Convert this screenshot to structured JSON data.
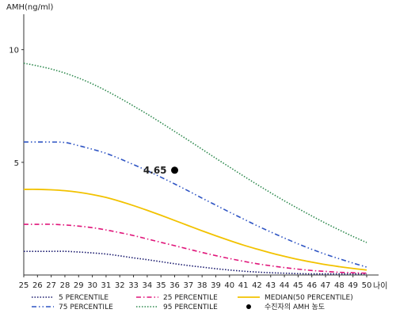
{
  "chart_data": {
    "type": "line",
    "ylabel": "AMH(ng/ml)",
    "xlabel": "나이",
    "xlim": [
      25,
      50
    ],
    "ylim": [
      0,
      11.5
    ],
    "yticks": [
      5,
      10
    ],
    "x": [
      25,
      26,
      27,
      28,
      29,
      30,
      31,
      32,
      33,
      34,
      35,
      36,
      37,
      38,
      39,
      40,
      41,
      42,
      43,
      44,
      45,
      46,
      47,
      48,
      49,
      50
    ],
    "series": [
      {
        "name": "5 PERCENTILE",
        "color": "#1a1a6e",
        "dash": "dotted",
        "values": [
          1.05,
          1.05,
          1.05,
          1.05,
          1.02,
          0.98,
          0.93,
          0.85,
          0.76,
          0.68,
          0.59,
          0.5,
          0.42,
          0.35,
          0.28,
          0.22,
          0.17,
          0.13,
          0.1,
          0.08,
          0.06,
          0.05,
          0.05,
          0.05,
          0.05,
          0.05
        ]
      },
      {
        "name": "25 PERCENTILE",
        "color": "#e0157a",
        "dash": "dash-dot",
        "values": [
          2.25,
          2.25,
          2.25,
          2.22,
          2.17,
          2.1,
          2.0,
          1.88,
          1.75,
          1.6,
          1.45,
          1.3,
          1.15,
          1.0,
          0.86,
          0.73,
          0.61,
          0.5,
          0.41,
          0.33,
          0.26,
          0.2,
          0.16,
          0.12,
          0.1,
          0.08
        ]
      },
      {
        "name": "MEDIAN(50 PERCENTILE)",
        "color": "#f2c200",
        "dash": "solid",
        "values": [
          3.8,
          3.8,
          3.78,
          3.74,
          3.67,
          3.57,
          3.44,
          3.27,
          3.08,
          2.87,
          2.65,
          2.42,
          2.19,
          1.96,
          1.74,
          1.53,
          1.33,
          1.15,
          0.98,
          0.83,
          0.69,
          0.57,
          0.46,
          0.37,
          0.29,
          0.22
        ]
      },
      {
        "name": "75 PERCENTILE",
        "color": "#2f55c4",
        "dash": "dash-dot-dot",
        "values": [
          5.9,
          5.9,
          5.9,
          5.88,
          5.74,
          5.58,
          5.4,
          5.16,
          4.9,
          4.63,
          4.34,
          4.04,
          3.73,
          3.41,
          3.1,
          2.79,
          2.49,
          2.19,
          1.91,
          1.64,
          1.38,
          1.14,
          0.92,
          0.72,
          0.53,
          0.35
        ]
      },
      {
        "name": "95 PERCENTILE",
        "color": "#2f8a4f",
        "dash": "dotted",
        "values": [
          9.4,
          9.28,
          9.14,
          8.96,
          8.74,
          8.48,
          8.18,
          7.85,
          7.5,
          7.14,
          6.76,
          6.37,
          5.98,
          5.58,
          5.18,
          4.79,
          4.4,
          4.02,
          3.65,
          3.29,
          2.95,
          2.62,
          2.3,
          2.0,
          1.71,
          1.44
        ]
      }
    ],
    "marker": {
      "name": "수진자의 AMH 농도",
      "x": 36,
      "y": 4.65,
      "label": "4.65"
    },
    "legend_rows": [
      [
        "5 PERCENTILE",
        "25 PERCENTILE",
        "MEDIAN(50 PERCENTILE)"
      ],
      [
        "75 PERCENTILE",
        "95 PERCENTILE",
        "수진자의 AMH 농도"
      ]
    ],
    "legend_placement": "bottom",
    "grid": false
  }
}
